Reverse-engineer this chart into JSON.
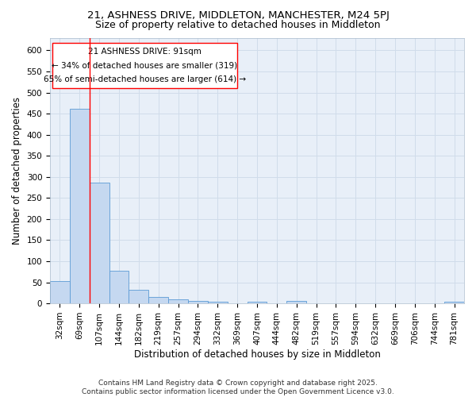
{
  "title_line1": "21, ASHNESS DRIVE, MIDDLETON, MANCHESTER, M24 5PJ",
  "title_line2": "Size of property relative to detached houses in Middleton",
  "xlabel": "Distribution of detached houses by size in Middleton",
  "ylabel": "Number of detached properties",
  "categories": [
    "32sqm",
    "69sqm",
    "107sqm",
    "144sqm",
    "182sqm",
    "219sqm",
    "257sqm",
    "294sqm",
    "332sqm",
    "369sqm",
    "407sqm",
    "444sqm",
    "482sqm",
    "519sqm",
    "557sqm",
    "594sqm",
    "632sqm",
    "669sqm",
    "706sqm",
    "744sqm",
    "781sqm"
  ],
  "values": [
    53,
    462,
    287,
    77,
    32,
    16,
    10,
    6,
    4,
    0,
    4,
    0,
    5,
    0,
    0,
    0,
    0,
    0,
    0,
    0,
    4
  ],
  "bar_color": "#c5d8f0",
  "bar_edge_color": "#5b9bd5",
  "grid_color": "#d0dcea",
  "plot_bg_color": "#e8eff8",
  "fig_bg_color": "#ffffff",
  "red_line_x": 1.5,
  "annotation_text_line1": "21 ASHNESS DRIVE: 91sqm",
  "annotation_text_line2": "← 34% of detached houses are smaller (319)",
  "annotation_text_line3": "65% of semi-detached houses are larger (614) →",
  "footnote": "Contains HM Land Registry data © Crown copyright and database right 2025.\nContains public sector information licensed under the Open Government Licence v3.0.",
  "ylim": [
    0,
    630
  ],
  "yticks": [
    0,
    50,
    100,
    150,
    200,
    250,
    300,
    350,
    400,
    450,
    500,
    550,
    600
  ],
  "title_fontsize": 9.5,
  "subtitle_fontsize": 9,
  "axis_label_fontsize": 8.5,
  "tick_fontsize": 7.5,
  "annotation_fontsize": 7.5,
  "footnote_fontsize": 6.5
}
